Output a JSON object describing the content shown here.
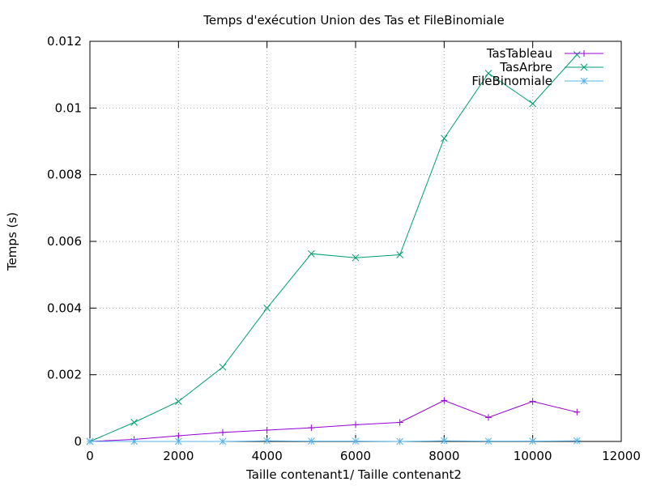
{
  "chart_data": {
    "type": "line",
    "title": "Temps d'exécution Union des Tas et FileBinomiale",
    "xlabel": "Taille contenant1/ Taille contenant2",
    "ylabel": "Temps (s)",
    "xlim": [
      0,
      12000
    ],
    "ylim": [
      0,
      0.012
    ],
    "xticks": [
      "0",
      "2000",
      "4000",
      "6000",
      "8000",
      "10000",
      "12000"
    ],
    "yticks": [
      "0",
      "0.002",
      "0.004",
      "0.006",
      "0.008",
      "0.01",
      "0.012"
    ],
    "grid": true,
    "legend_position": "top-right",
    "series": [
      {
        "name": "TasTableau",
        "color": "#9400d3",
        "marker": "plus",
        "x": [
          0,
          1000,
          2000,
          3000,
          4000,
          5000,
          6000,
          7000,
          8000,
          9000,
          10000,
          11000
        ],
        "y": [
          0.0,
          6e-05,
          0.00017,
          0.00027,
          0.00034,
          0.00041,
          0.0005,
          0.00057,
          0.00123,
          0.00072,
          0.0012,
          0.00088
        ]
      },
      {
        "name": "TasArbre",
        "color": "#009e73",
        "marker": "cross",
        "x": [
          0,
          1000,
          2000,
          3000,
          4000,
          5000,
          6000,
          7000,
          8000,
          9000,
          10000,
          11000
        ],
        "y": [
          0.0,
          0.00057,
          0.0012,
          0.00223,
          0.004,
          0.00563,
          0.00551,
          0.0056,
          0.00909,
          0.01104,
          0.01013,
          0.0116
        ]
      },
      {
        "name": "FileBinomiale",
        "color": "#56b4e9",
        "marker": "star",
        "x": [
          0,
          1000,
          2000,
          3000,
          4000,
          5000,
          6000,
          7000,
          8000,
          9000,
          10000,
          11000
        ],
        "y": [
          0.0,
          0.0,
          0.0,
          0.0,
          2e-05,
          1e-05,
          1e-05,
          0.0,
          2e-05,
          1e-05,
          1e-05,
          2e-05
        ]
      }
    ]
  }
}
